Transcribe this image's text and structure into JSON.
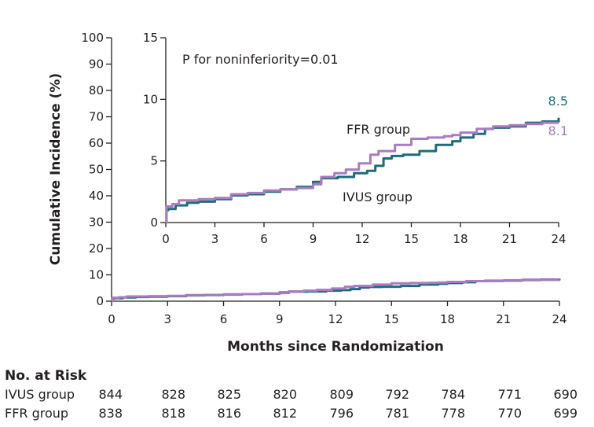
{
  "chart_data": {
    "type": "line",
    "subtype": "kaplan-meier cumulative incidence",
    "xlabel": "Months since Randomization",
    "ylabel": "Cumulative Incidence (%)",
    "xlim": [
      0,
      24
    ],
    "ylim": [
      0,
      100
    ],
    "xticks": [
      "0",
      "3",
      "6",
      "9",
      "12",
      "15",
      "18",
      "21",
      "24"
    ],
    "yticks": [
      "0",
      "10",
      "20",
      "30",
      "40",
      "50",
      "60",
      "70",
      "80",
      "90",
      "100"
    ],
    "series": [
      {
        "name": "IVUS group",
        "color": "#1f6b7a",
        "points": [
          [
            0,
            0.0
          ],
          [
            0.05,
            1.0
          ],
          [
            0.15,
            1.1
          ],
          [
            0.6,
            1.4
          ],
          [
            1.3,
            1.6
          ],
          [
            2.0,
            1.7
          ],
          [
            3.0,
            1.9
          ],
          [
            4.0,
            2.2
          ],
          [
            5.0,
            2.3
          ],
          [
            6.0,
            2.5
          ],
          [
            7.0,
            2.7
          ],
          [
            8.0,
            2.9
          ],
          [
            9.0,
            3.3
          ],
          [
            9.5,
            3.6
          ],
          [
            10.5,
            3.7
          ],
          [
            11.5,
            4.0
          ],
          [
            12.3,
            4.2
          ],
          [
            12.8,
            4.6
          ],
          [
            13.3,
            5.2
          ],
          [
            13.8,
            5.4
          ],
          [
            14.5,
            5.5
          ],
          [
            15.5,
            5.8
          ],
          [
            16.5,
            6.3
          ],
          [
            17.5,
            6.6
          ],
          [
            18.0,
            6.9
          ],
          [
            18.8,
            7.2
          ],
          [
            19.5,
            7.6
          ],
          [
            20.0,
            7.7
          ],
          [
            21.0,
            7.8
          ],
          [
            22.0,
            8.1
          ],
          [
            23.0,
            8.2
          ],
          [
            24.0,
            8.5
          ]
        ]
      },
      {
        "name": "FFR group",
        "color": "#a87cc0",
        "points": [
          [
            0,
            0.0
          ],
          [
            0.05,
            1.3
          ],
          [
            0.4,
            1.5
          ],
          [
            0.8,
            1.8
          ],
          [
            2.0,
            1.9
          ],
          [
            3.0,
            2.0
          ],
          [
            4.0,
            2.3
          ],
          [
            5.0,
            2.4
          ],
          [
            6.0,
            2.6
          ],
          [
            7.0,
            2.7
          ],
          [
            8.0,
            2.8
          ],
          [
            9.0,
            3.1
          ],
          [
            9.5,
            3.7
          ],
          [
            10.3,
            4.0
          ],
          [
            11.0,
            4.3
          ],
          [
            11.8,
            4.8
          ],
          [
            12.5,
            5.5
          ],
          [
            13.0,
            5.8
          ],
          [
            14.0,
            6.3
          ],
          [
            15.0,
            6.8
          ],
          [
            16.0,
            6.9
          ],
          [
            17.0,
            7.0
          ],
          [
            17.5,
            7.1
          ],
          [
            18.0,
            7.3
          ],
          [
            19.0,
            7.6
          ],
          [
            20.0,
            7.8
          ],
          [
            21.0,
            7.9
          ],
          [
            22.0,
            8.0
          ],
          [
            23.0,
            8.1
          ],
          [
            24.0,
            8.1
          ]
        ]
      }
    ],
    "inset": {
      "xlim": [
        0,
        24
      ],
      "ylim": [
        0,
        15
      ],
      "xticks": [
        "0",
        "3",
        "6",
        "9",
        "12",
        "15",
        "18",
        "21",
        "24"
      ],
      "yticks": [
        "0",
        "5",
        "10",
        "15"
      ],
      "annotation": "P for noninferiority=0.01",
      "series_labels": [
        "FFR group",
        "IVUS group"
      ],
      "end_labels": [
        {
          "series": "IVUS group",
          "value": 8.5,
          "text": "8.5"
        },
        {
          "series": "FFR group",
          "value": 8.1,
          "text": "8.1"
        }
      ]
    }
  },
  "risk_table": {
    "title": "No. at Risk",
    "months": [
      0,
      3,
      6,
      9,
      12,
      15,
      18,
      21,
      24
    ],
    "rows": [
      {
        "label": "IVUS group",
        "values": [
          "844",
          "828",
          "825",
          "820",
          "809",
          "792",
          "784",
          "771",
          "690"
        ]
      },
      {
        "label": "FFR group",
        "values": [
          "838",
          "818",
          "816",
          "812",
          "796",
          "781",
          "778",
          "770",
          "699"
        ]
      }
    ]
  }
}
